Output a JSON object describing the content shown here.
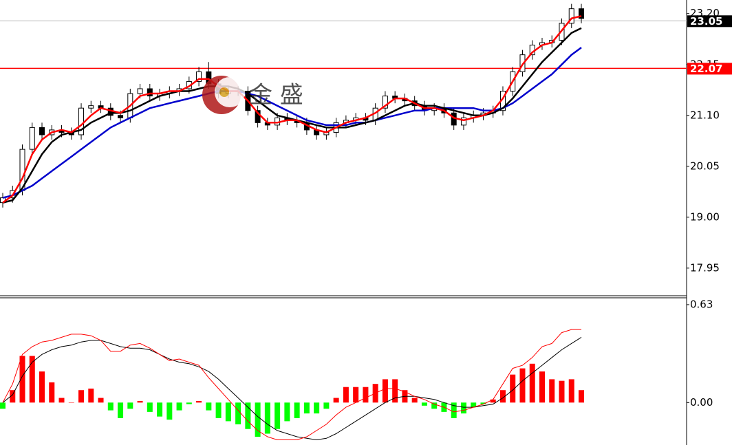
{
  "watermark": "金 盛",
  "chart_data": [
    {
      "type": "candlestick",
      "ylim": [
        17.38,
        23.48
      ],
      "yticks": [
        17.95,
        {
          "value": 19,
          "label": "19.00"
        },
        20.05,
        {
          "value": 21.1,
          "label": "21.10"
        },
        22.15,
        {
          "value": 23.2,
          "label": "23.20"
        }
      ],
      "open": [
        19.3,
        19.4,
        19.55,
        20.4,
        20.85,
        20.7,
        20.8,
        20.75,
        20.7,
        21.25,
        21.3,
        21.25,
        21.1,
        21.05,
        21.55,
        21.65,
        21.5,
        21.55,
        21.6,
        21.65,
        21.8,
        22.0,
        21.75,
        21.55,
        21.6,
        21.6,
        21.2,
        20.95,
        20.9,
        21.05,
        21.0,
        20.95,
        20.8,
        20.7,
        20.75,
        20.95,
        21.0,
        21.05,
        21.0,
        21.25,
        21.5,
        21.45,
        21.4,
        21.3,
        21.2,
        21.25,
        21.15,
        20.9,
        21.05,
        21.1,
        21.15,
        21.2,
        21.6,
        22.0,
        22.35,
        22.55,
        22.6,
        22.65,
        23.0,
        23.3
      ],
      "high": [
        19.5,
        19.65,
        20.5,
        20.95,
        20.95,
        20.9,
        20.9,
        20.85,
        21.35,
        21.4,
        21.4,
        21.35,
        21.2,
        21.65,
        21.75,
        21.75,
        21.65,
        21.7,
        21.75,
        21.9,
        22.1,
        22.2,
        21.85,
        21.7,
        21.7,
        21.7,
        21.3,
        21.05,
        21.15,
        21.15,
        21.1,
        21.05,
        20.9,
        20.85,
        21.05,
        21.1,
        21.15,
        21.15,
        21.35,
        21.6,
        21.6,
        21.55,
        21.5,
        21.4,
        21.35,
        21.35,
        21.25,
        21.15,
        21.2,
        21.25,
        21.3,
        21.7,
        22.1,
        22.45,
        22.65,
        22.7,
        22.75,
        23.1,
        23.4,
        23.4
      ],
      "low": [
        19.2,
        19.3,
        19.45,
        20.3,
        20.6,
        20.6,
        20.65,
        20.6,
        20.6,
        21.15,
        21.15,
        21.0,
        20.95,
        20.95,
        21.45,
        21.4,
        21.4,
        21.45,
        21.5,
        21.55,
        21.7,
        21.65,
        21.45,
        21.45,
        21.5,
        21.1,
        20.85,
        20.8,
        20.8,
        20.9,
        20.85,
        20.7,
        20.6,
        20.6,
        20.65,
        20.85,
        20.9,
        20.9,
        20.9,
        21.15,
        21.35,
        21.3,
        21.2,
        21.1,
        21.1,
        21.05,
        20.8,
        20.8,
        20.95,
        21.0,
        21.05,
        21.1,
        21.5,
        21.9,
        22.25,
        22.45,
        22.5,
        22.55,
        22.9,
        23.0
      ],
      "close": [
        19.4,
        19.55,
        20.4,
        20.85,
        20.7,
        20.8,
        20.75,
        20.7,
        21.25,
        21.3,
        21.25,
        21.1,
        21.05,
        21.55,
        21.65,
        21.5,
        21.55,
        21.6,
        21.65,
        21.8,
        22.0,
        21.75,
        21.55,
        21.6,
        21.6,
        21.2,
        20.95,
        20.9,
        21.05,
        21.0,
        20.95,
        20.8,
        20.7,
        20.75,
        20.95,
        21.0,
        21.05,
        21.0,
        21.25,
        21.5,
        21.45,
        21.4,
        21.3,
        21.2,
        21.25,
        21.15,
        20.9,
        21.05,
        21.1,
        21.15,
        21.2,
        21.6,
        22.0,
        22.35,
        22.55,
        22.6,
        22.65,
        23.0,
        23.3,
        23.1
      ],
      "series": [
        {
          "color": "#0000cc",
          "values": [
            19.4,
            19.45,
            19.55,
            19.65,
            19.8,
            19.95,
            20.1,
            20.25,
            20.4,
            20.55,
            20.7,
            20.85,
            20.95,
            21.05,
            21.15,
            21.25,
            21.3,
            21.35,
            21.4,
            21.45,
            21.5,
            21.55,
            21.6,
            21.6,
            21.6,
            21.55,
            21.5,
            21.4,
            21.3,
            21.2,
            21.1,
            21.0,
            20.95,
            20.9,
            20.9,
            20.9,
            20.95,
            20.95,
            21.0,
            21.05,
            21.1,
            21.15,
            21.2,
            21.2,
            21.25,
            21.25,
            21.25,
            21.25,
            21.25,
            21.2,
            21.2,
            21.25,
            21.35,
            21.5,
            21.65,
            21.8,
            21.95,
            22.15,
            22.35,
            22.5
          ]
        },
        {
          "color": "#000000",
          "values": [
            19.3,
            19.35,
            19.6,
            19.95,
            20.3,
            20.55,
            20.7,
            20.75,
            20.8,
            20.95,
            21.05,
            21.15,
            21.15,
            21.2,
            21.3,
            21.4,
            21.5,
            21.55,
            21.6,
            21.6,
            21.65,
            21.7,
            21.7,
            21.7,
            21.65,
            21.55,
            21.4,
            21.25,
            21.1,
            21.05,
            21.0,
            20.95,
            20.9,
            20.85,
            20.85,
            20.85,
            20.9,
            20.95,
            21.0,
            21.1,
            21.2,
            21.3,
            21.35,
            21.3,
            21.3,
            21.25,
            21.2,
            21.15,
            21.1,
            21.1,
            21.15,
            21.25,
            21.45,
            21.7,
            21.95,
            22.2,
            22.4,
            22.6,
            22.8,
            22.9
          ]
        },
        {
          "color": "#ff0000",
          "values": [
            19.3,
            19.45,
            19.8,
            20.3,
            20.6,
            20.75,
            20.8,
            20.75,
            20.9,
            21.1,
            21.25,
            21.2,
            21.15,
            21.3,
            21.5,
            21.55,
            21.55,
            21.6,
            21.6,
            21.7,
            21.85,
            21.85,
            21.7,
            21.6,
            21.6,
            21.4,
            21.15,
            20.95,
            20.95,
            21.0,
            21.0,
            20.9,
            20.8,
            20.75,
            20.85,
            20.95,
            21.0,
            21.05,
            21.15,
            21.3,
            21.45,
            21.45,
            21.35,
            21.25,
            21.25,
            21.2,
            21.05,
            21.0,
            21.05,
            21.1,
            21.2,
            21.45,
            21.8,
            22.15,
            22.4,
            22.55,
            22.6,
            22.85,
            23.1,
            23.15
          ]
        }
      ],
      "price_lines": [
        {
          "value": 23.05,
          "color": "#000000"
        },
        {
          "value": 22.07,
          "color": "#ff0000"
        }
      ]
    },
    {
      "type": "macd",
      "ylim": [
        -0.273,
        0.674
      ],
      "yticks": [
        0.63,
        {
          "value": 0,
          "label": "0.00"
        }
      ],
      "histogram": {
        "up_color": "#ff0000",
        "down_color": "#00ff00",
        "values": [
          -0.04,
          0.08,
          0.3,
          0.3,
          0.2,
          0.13,
          0.03,
          0.0,
          0.08,
          0.09,
          0.03,
          -0.05,
          -0.1,
          -0.04,
          0.01,
          -0.06,
          -0.09,
          -0.11,
          -0.05,
          -0.01,
          0.01,
          -0.05,
          -0.1,
          -0.12,
          -0.14,
          -0.17,
          -0.22,
          -0.2,
          -0.17,
          -0.12,
          -0.1,
          -0.07,
          -0.07,
          -0.04,
          0.03,
          0.1,
          0.1,
          0.1,
          0.12,
          0.15,
          0.15,
          0.08,
          0.03,
          -0.02,
          -0.04,
          -0.06,
          -0.1,
          -0.07,
          -0.03,
          -0.01,
          0.02,
          0.08,
          0.18,
          0.22,
          0.25,
          0.2,
          0.15,
          0.14,
          0.15,
          0.08
        ]
      },
      "series": [
        {
          "color": "#000000",
          "values": [
            0.0,
            0.05,
            0.17,
            0.26,
            0.31,
            0.34,
            0.36,
            0.37,
            0.39,
            0.4,
            0.4,
            0.38,
            0.36,
            0.35,
            0.35,
            0.34,
            0.31,
            0.28,
            0.26,
            0.25,
            0.23,
            0.2,
            0.15,
            0.09,
            0.03,
            -0.03,
            -0.09,
            -0.14,
            -0.18,
            -0.2,
            -0.22,
            -0.23,
            -0.24,
            -0.23,
            -0.2,
            -0.16,
            -0.12,
            -0.08,
            -0.04,
            0.0,
            0.03,
            0.04,
            0.04,
            0.03,
            0.02,
            0.0,
            -0.02,
            -0.03,
            -0.03,
            -0.02,
            -0.01,
            0.03,
            0.08,
            0.14,
            0.19,
            0.24,
            0.29,
            0.34,
            0.38,
            0.42
          ]
        },
        {
          "color": "#ff0000",
          "values": [
            0.0,
            0.12,
            0.31,
            0.36,
            0.39,
            0.4,
            0.42,
            0.44,
            0.44,
            0.43,
            0.4,
            0.33,
            0.33,
            0.37,
            0.38,
            0.35,
            0.31,
            0.27,
            0.28,
            0.26,
            0.24,
            0.16,
            0.09,
            0.02,
            -0.05,
            -0.12,
            -0.18,
            -0.22,
            -0.24,
            -0.24,
            -0.24,
            -0.22,
            -0.18,
            -0.14,
            -0.08,
            -0.03,
            0.0,
            0.03,
            0.06,
            0.09,
            0.09,
            0.07,
            0.04,
            0.02,
            -0.01,
            -0.03,
            -0.06,
            -0.05,
            -0.03,
            -0.01,
            0.02,
            0.12,
            0.22,
            0.24,
            0.29,
            0.36,
            0.38,
            0.45,
            0.47,
            0.47
          ]
        }
      ]
    }
  ]
}
